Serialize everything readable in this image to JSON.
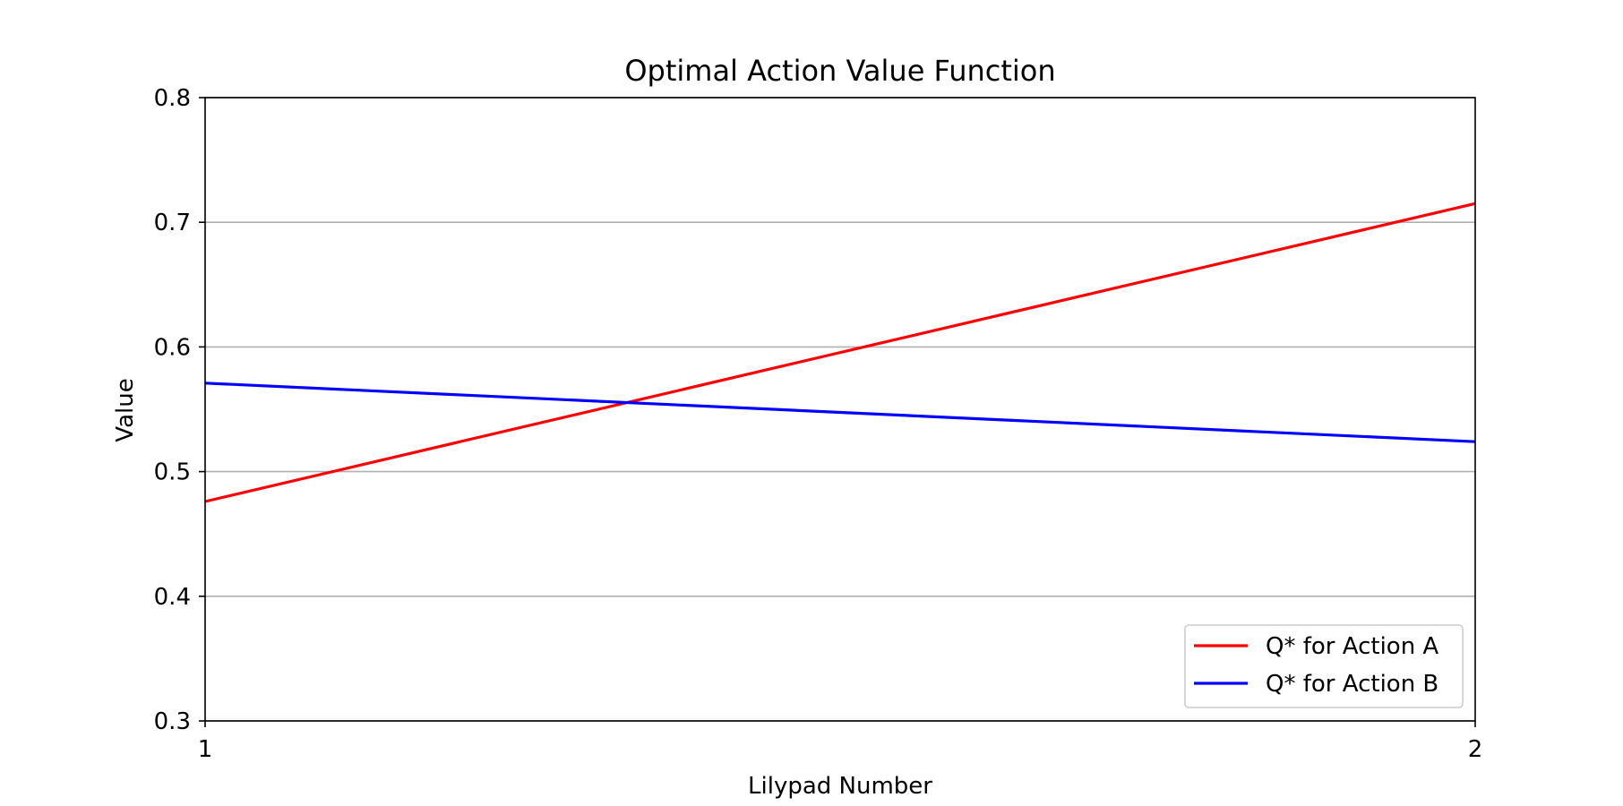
{
  "chart_data": {
    "type": "line",
    "title": "Optimal Action Value Function",
    "xlabel": "Lilypad Number",
    "ylabel": "Value",
    "x": [
      1,
      2
    ],
    "xticks": [
      1,
      2
    ],
    "xtick_labels": [
      "1",
      "2"
    ],
    "xlim": [
      1,
      2
    ],
    "ylim": [
      0.3,
      0.8
    ],
    "yticks": [
      0.3,
      0.4,
      0.5,
      0.6,
      0.7,
      0.8
    ],
    "ytick_labels": [
      "0.3",
      "0.4",
      "0.5",
      "0.6",
      "0.7",
      "0.8"
    ],
    "grid": "horizontal",
    "legend_position": "lower-right",
    "series": [
      {
        "name": "Q* for Action A",
        "color": "#ff0000",
        "values": [
          0.476,
          0.715
        ]
      },
      {
        "name": "Q* for Action B",
        "color": "#0000ff",
        "values": [
          0.571,
          0.524
        ]
      }
    ]
  }
}
